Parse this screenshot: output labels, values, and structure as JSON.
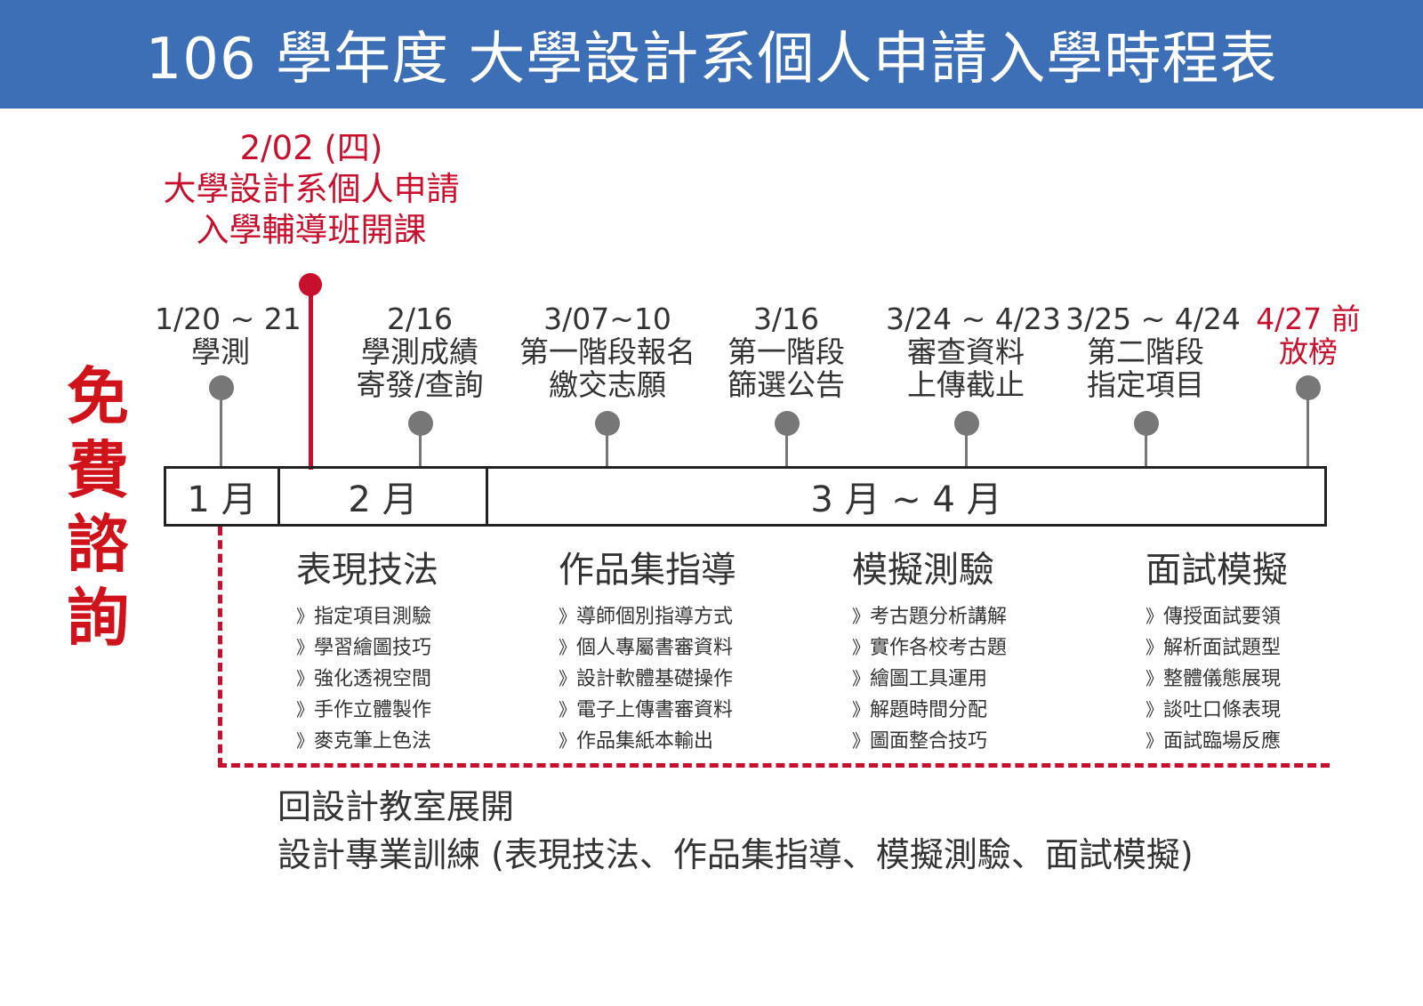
{
  "header": {
    "title": "106 學年度 大學設計系個人申請入學時程表"
  },
  "side_label": [
    "免",
    "費",
    "諮",
    "詢"
  ],
  "highlight_event": {
    "date": "2/02 (四)",
    "line1": "大學設計系個人申請",
    "line2": "入學輔導班開課"
  },
  "events": [
    {
      "date": "1/20 ~ 21",
      "lines": [
        "學測"
      ]
    },
    {
      "date": "2/16",
      "lines": [
        "學測成績",
        "寄發/查詢"
      ]
    },
    {
      "date": "3/07~10",
      "lines": [
        "第一階段報名",
        "繳交志願"
      ]
    },
    {
      "date": "3/16",
      "lines": [
        "第一階段",
        "篩選公告"
      ]
    },
    {
      "date": "3/24 ~ 4/23",
      "lines": [
        "審查資料",
        "上傳截止"
      ]
    },
    {
      "date": "3/25 ~ 4/24",
      "lines": [
        "第二階段",
        "指定項目"
      ]
    },
    {
      "date": "4/27 前",
      "lines": [
        "放榜"
      ]
    }
  ],
  "months": [
    "1 月",
    "2 月",
    "3 月 ~ 4 月"
  ],
  "courses": [
    {
      "title": "表現技法",
      "items": [
        "指定項目測驗",
        "學習繪圖技巧",
        "強化透視空間",
        "手作立體製作",
        "麥克筆上色法"
      ]
    },
    {
      "title": "作品集指導",
      "items": [
        "導師個別指導方式",
        "個人專屬書審資料",
        "設計軟體基礎操作",
        "電子上傳書審資料",
        "作品集紙本輸出"
      ]
    },
    {
      "title": "模擬測驗",
      "items": [
        "考古題分析講解",
        "實作各校考古題",
        "繪圖工具運用",
        "解題時間分配",
        "圖面整合技巧"
      ]
    },
    {
      "title": "面試模擬",
      "items": [
        "傳授面試要領",
        "解析面試題型",
        "整體儀態展現",
        "談吐口條表現",
        "面試臨場反應"
      ]
    }
  ],
  "footer": {
    "line1": "回設計教室展開",
    "line2": "設計專業訓練 (表現技法、作品集指導、模擬測驗、面試模擬)"
  },
  "colors": {
    "header_bg": "#3d6fb6",
    "accent_red": "#c8102e",
    "pin_gray": "#777777"
  }
}
